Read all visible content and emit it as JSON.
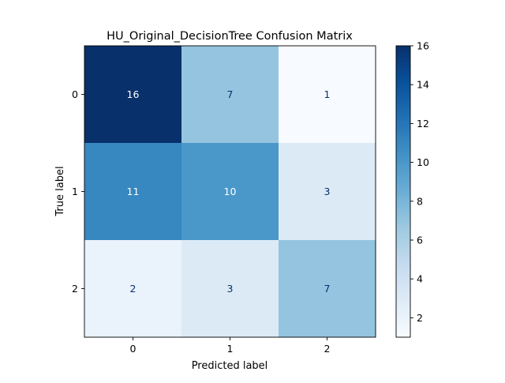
{
  "chart_data": {
    "type": "heatmap",
    "title": "HU_Original_DecisionTree Confusion Matrix",
    "xlabel": "Predicted label",
    "ylabel": "True label",
    "x_categories": [
      "0",
      "1",
      "2"
    ],
    "y_categories": [
      "0",
      "1",
      "2"
    ],
    "values": [
      [
        16,
        7,
        1
      ],
      [
        11,
        10,
        3
      ],
      [
        2,
        3,
        7
      ]
    ],
    "colormap": "Blues",
    "vmin": 1,
    "vmax": 16,
    "colorbar_ticks": [
      2,
      4,
      6,
      8,
      10,
      12,
      14,
      16
    ],
    "text_color_light": "#ffffff",
    "text_color_dark": "#08306b"
  }
}
